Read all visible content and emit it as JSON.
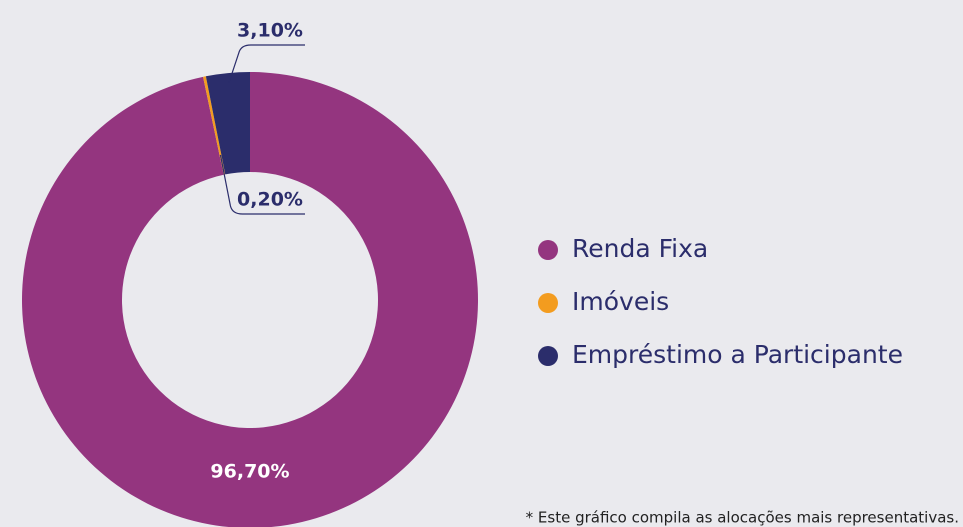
{
  "chart_data": {
    "type": "donut",
    "categories": [
      "Renda Fixa",
      "Imóveis",
      "Empréstimo a Participante"
    ],
    "values": [
      96.7,
      0.2,
      3.1
    ],
    "value_labels": [
      "96,70%",
      "0,20%",
      "3,10%"
    ],
    "colors": [
      "#94357f",
      "#f39c1f",
      "#2b2d6b"
    ],
    "footnote": "* Este gráfico compila as alocações mais representativas."
  }
}
